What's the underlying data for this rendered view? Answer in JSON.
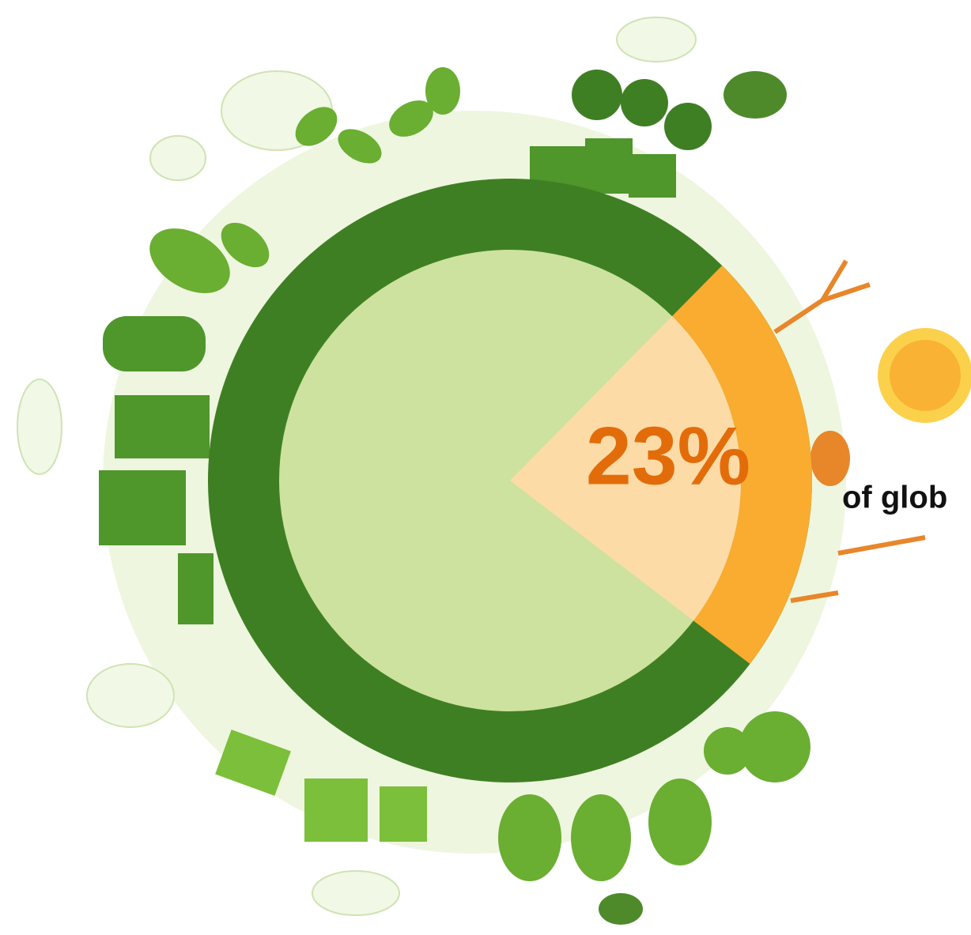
{
  "chart_data": {
    "type": "pie",
    "values": [
      23
    ],
    "value_labels": [
      "23%"
    ],
    "color": "#f9ac2f",
    "annotation": "of glob"
  }
}
